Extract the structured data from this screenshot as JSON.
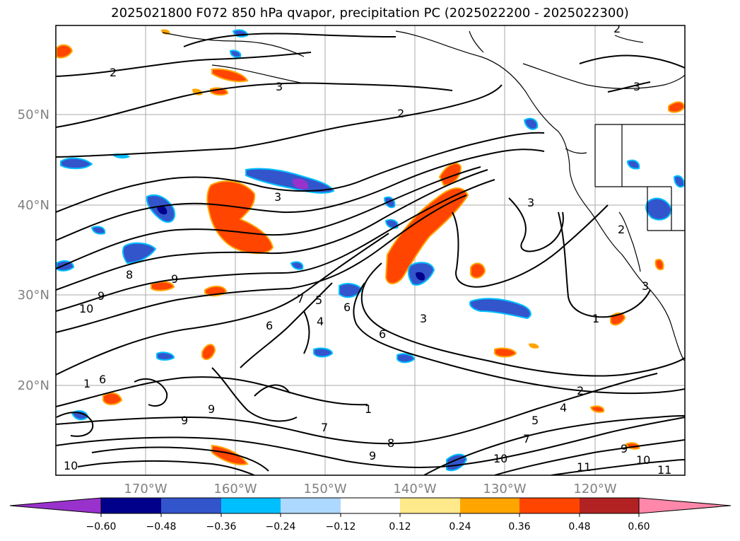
{
  "title": "2025021800 F072 850 hPa qvapor, precipitation PC (2025022200 - 2025022300)",
  "lat_labels": [
    "50°N",
    "40°N",
    "30°N",
    "20°N"
  ],
  "lon_labels": [
    "170°W",
    "160°W",
    "150°W",
    "140°W",
    "130°W",
    "120°W"
  ],
  "colorbar": {
    "tick_labels": [
      "−0.60",
      "−0.48",
      "−0.36",
      "−0.24",
      "−0.12",
      "0.12",
      "0.24",
      "0.36",
      "0.48",
      "0.60"
    ],
    "colors": [
      "#9932cc",
      "#00008b",
      "#3355cc",
      "#00bfff",
      "#add8ff",
      "#ffffff",
      "#ffe98a",
      "#ffa500",
      "#ff4500",
      "#b22222",
      "#ff88aa"
    ]
  },
  "contour_labels": [
    "2",
    "3",
    "2",
    "3",
    "3",
    "2",
    "8",
    "9",
    "9",
    "10",
    "7",
    "5",
    "6",
    "4",
    "6",
    "3",
    "6",
    "1",
    "2",
    "4",
    "5",
    "7",
    "9",
    "10",
    "11",
    "10",
    "11",
    "8",
    "9",
    "7",
    "1",
    "6",
    "9",
    "10",
    "9",
    "3",
    "1",
    "2",
    "3"
  ],
  "legend": {
    "fill": "precipitation PC",
    "contours": "850 hPa qvapor"
  }
}
